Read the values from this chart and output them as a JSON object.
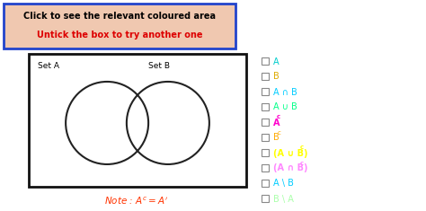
{
  "header_text": "Click to see the relevant coloured area",
  "subheader_text": "Untick the box to try another one",
  "header_bg": "#f0c8b0",
  "header_border": "#2244cc",
  "set_a_label": "Set A",
  "set_b_label": "Set B",
  "note_color": "#ff3300",
  "legend_items": [
    {
      "text": "A",
      "color": "#00cccc",
      "bold": false
    },
    {
      "text": "B",
      "color": "#ddaa00",
      "bold": false
    },
    {
      "text": "A ∩ B",
      "color": "#00ccff",
      "bold": false
    },
    {
      "text": "A ∪ B",
      "color": "#00ff88",
      "bold": false
    },
    {
      "text": "A",
      "color": "#ff00cc",
      "bold": true,
      "super": "c"
    },
    {
      "text": "B",
      "color": "#ffaa00",
      "bold": false,
      "super": "c"
    },
    {
      "text": "(A ∪ B)",
      "color": "#ffff00",
      "bold": true,
      "super": "c"
    },
    {
      "text": "(A ∩ B)",
      "color": "#ff88ff",
      "bold": true,
      "super": "c"
    },
    {
      "text": "A \\ B",
      "color": "#00ccff",
      "bold": false
    },
    {
      "text": "B \\ A",
      "color": "#aaffaa",
      "bold": false
    }
  ],
  "venn_box_color": "#111111",
  "circle_color": "#222222",
  "bg_color": "#ffffff",
  "fig_w": 4.74,
  "fig_h": 2.35,
  "dpi": 100
}
